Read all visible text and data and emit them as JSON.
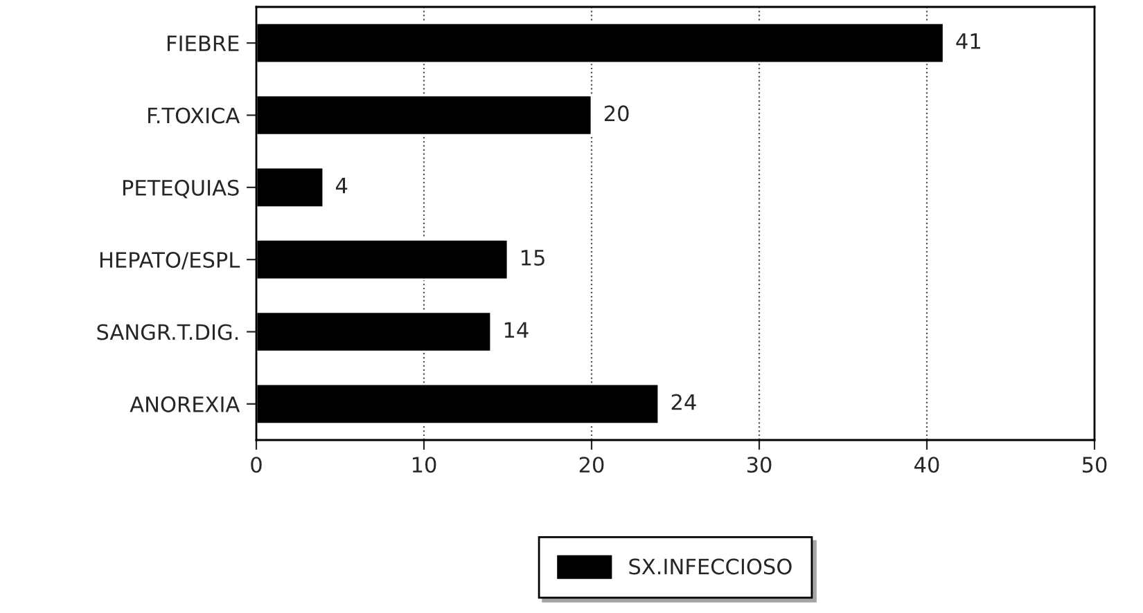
{
  "chart_data": {
    "type": "bar",
    "orientation": "horizontal",
    "categories": [
      "FIEBRE",
      "F.TOXICA",
      "PETEQUIAS",
      "HEPATO/ESPL",
      "SANGR.T.DIG.",
      "ANOREXIA"
    ],
    "series": [
      {
        "name": "SX.INFECCIOSO",
        "color": "#000000",
        "values": [
          41,
          20,
          4,
          15,
          14,
          24
        ]
      }
    ],
    "xlim": [
      0,
      50
    ],
    "xticks": [
      0,
      10,
      20,
      30,
      40,
      50
    ],
    "grid": "x",
    "legend": "bottom",
    "data_labels": true
  }
}
